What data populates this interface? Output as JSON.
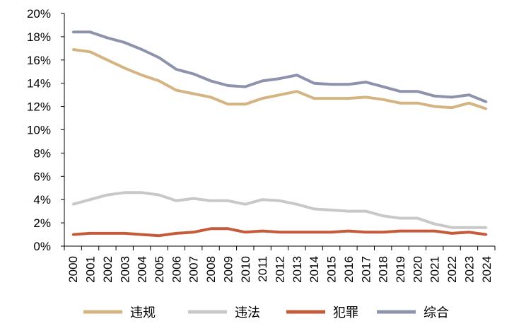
{
  "chart_data": {
    "type": "line",
    "title": "",
    "xlabel": "",
    "ylabel": "",
    "categories": [
      "2000",
      "2001",
      "2002",
      "2003",
      "2004",
      "2005",
      "2006",
      "2007",
      "2008",
      "2009",
      "2010",
      "2011",
      "2012",
      "2013",
      "2014",
      "2015",
      "2016",
      "2017",
      "2018",
      "2019",
      "2020",
      "2021",
      "2022",
      "2023",
      "2024"
    ],
    "ylim": [
      0,
      20
    ],
    "yticks": [
      "0%",
      "2%",
      "4%",
      "6%",
      "8%",
      "10%",
      "12%",
      "14%",
      "16%",
      "18%",
      "20%"
    ],
    "grid": false,
    "legend_position": "bottom",
    "series": [
      {
        "name": "违规",
        "color": "#d4b483",
        "values": [
          16.9,
          16.7,
          16.0,
          15.3,
          14.7,
          14.2,
          13.4,
          13.1,
          12.8,
          12.2,
          12.2,
          12.7,
          13.0,
          13.3,
          12.7,
          12.7,
          12.7,
          12.8,
          12.6,
          12.3,
          12.3,
          12.0,
          11.9,
          12.3,
          11.8
        ]
      },
      {
        "name": "违法",
        "color": "#c8c8c8",
        "values": [
          3.6,
          4.0,
          4.4,
          4.6,
          4.6,
          4.4,
          3.9,
          4.1,
          3.9,
          3.9,
          3.6,
          4.0,
          3.9,
          3.6,
          3.2,
          3.1,
          3.0,
          3.0,
          2.6,
          2.4,
          2.4,
          1.9,
          1.6,
          1.6,
          1.6
        ]
      },
      {
        "name": "犯罪",
        "color": "#c45c3c",
        "values": [
          1.0,
          1.1,
          1.1,
          1.1,
          1.0,
          0.9,
          1.1,
          1.2,
          1.5,
          1.5,
          1.2,
          1.3,
          1.2,
          1.2,
          1.2,
          1.2,
          1.3,
          1.2,
          1.2,
          1.3,
          1.3,
          1.3,
          1.1,
          1.2,
          1.0
        ]
      },
      {
        "name": "综合",
        "color": "#8d93ad",
        "values": [
          18.4,
          18.4,
          17.9,
          17.5,
          16.9,
          16.2,
          15.2,
          14.8,
          14.2,
          13.8,
          13.7,
          14.2,
          14.4,
          14.7,
          14.0,
          13.9,
          13.9,
          14.1,
          13.7,
          13.3,
          13.3,
          12.9,
          12.8,
          13.0,
          12.4
        ]
      }
    ]
  }
}
